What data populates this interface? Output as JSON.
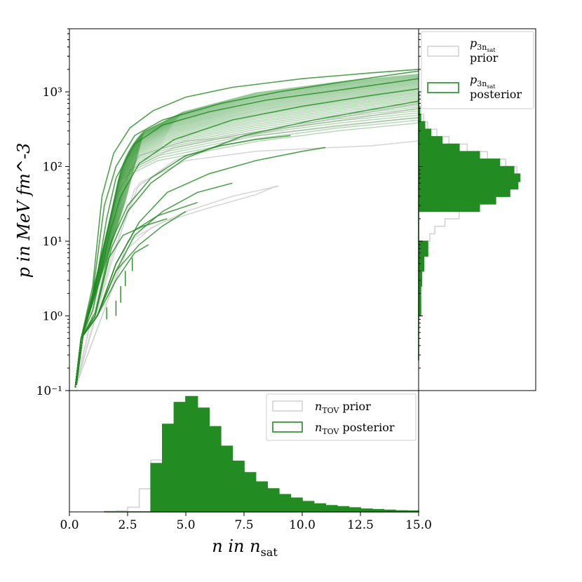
{
  "colors": {
    "prior": "#d3d3d3",
    "posterior": "#228b22",
    "legend_frame": "#cccccc"
  },
  "chart_data": [
    {
      "panel": "main",
      "type": "line",
      "xlabel": "n in n_sat",
      "ylabel": "p in MeV fm^-3",
      "xlim": [
        0,
        15
      ],
      "ylim": [
        0.1,
        7000
      ],
      "yscale": "log",
      "yticks": [
        0.1,
        1,
        10,
        100,
        1000
      ],
      "ytick_labels": [
        "10⁻¹",
        "10⁰",
        "10¹",
        "10²",
        "10³"
      ],
      "series": [
        {
          "name": "prior",
          "color": "#d3d3d3",
          "description": "sampled equation-of-state curves",
          "curves": [
            {
              "x": [
                0.3,
                1.2,
                2.0,
                3.0,
                5.0,
                8.0,
                11.0,
                14.0,
                15.0
              ],
              "y": [
                0.12,
                2.0,
                40,
                140,
                220,
                260,
                330,
                420,
                450
              ]
            },
            {
              "x": [
                0.3,
                1.5,
                2.5,
                3.5,
                5.0,
                7.0,
                9.0
              ],
              "y": [
                0.12,
                1.2,
                8,
                15,
                25,
                40,
                55
              ]
            },
            {
              "x": [
                0.3,
                1.5,
                2.5,
                4.0,
                6.0,
                8.0,
                8.9
              ],
              "y": [
                0.12,
                1.2,
                10,
                18,
                28,
                42,
                55
              ]
            },
            {
              "x": [
                0.3,
                1.8,
                3.0,
                5.0,
                8.0,
                10.5,
                13.0,
                15.0
              ],
              "y": [
                0.12,
                6,
                60,
                120,
                160,
                175,
                190,
                220
              ]
            },
            {
              "x": [
                0.3,
                1.6,
                2.6,
                4.5,
                7.0,
                10.0,
                13.0,
                15.0
              ],
              "y": [
                0.12,
                8,
                90,
                180,
                260,
                350,
                480,
                600
              ]
            },
            {
              "x": [
                0.3,
                1.7,
                2.8,
                4.5,
                7.5,
                11.0,
                15.0
              ],
              "y": [
                0.12,
                4,
                50,
                120,
                250,
                420,
                700
              ]
            }
          ]
        },
        {
          "name": "posterior",
          "color": "#228b22",
          "description": "sampled equation-of-state curves",
          "curves": [
            {
              "x": [
                0.25,
                0.5,
                1.0,
                1.6,
                2.0,
                2.8,
                4.0,
                6.0,
                8.5,
                12.0,
                15.0
              ],
              "y": [
                0.11,
                0.5,
                1.5,
                20,
                70,
                200,
                360,
                540,
                780,
                1100,
                1500
              ]
            },
            {
              "x": [
                0.25,
                0.5,
                1.0,
                1.5,
                2.0,
                2.8,
                4.0,
                6.5,
                9.0,
                12.0,
                15.0
              ],
              "y": [
                0.11,
                0.5,
                2.0,
                30,
                100,
                260,
                420,
                700,
                1000,
                1400,
                1900
              ]
            },
            {
              "x": [
                0.25,
                0.5,
                1.0,
                1.7,
                2.2,
                3.0,
                4.5,
                7.0,
                10.0,
                13.0,
                15.0
              ],
              "y": [
                0.11,
                0.5,
                1.2,
                12,
                40,
                110,
                230,
                420,
                640,
                900,
                1100
              ]
            },
            {
              "x": [
                0.25,
                0.5,
                1.1,
                1.8,
                2.5,
                3.5,
                5.0,
                7.5,
                10.5,
                13.5,
                15.0
              ],
              "y": [
                0.11,
                0.5,
                1.0,
                8,
                25,
                60,
                130,
                260,
                420,
                620,
                750
              ]
            },
            {
              "x": [
                0.25,
                0.5,
                1.2,
                2.0,
                2.8,
                4.0,
                5.5,
                7.0
              ],
              "y": [
                0.11,
                0.5,
                1.0,
                4,
                12,
                25,
                45,
                60
              ]
            },
            {
              "x": [
                0.25,
                0.5,
                1.1,
                1.8,
                2.5,
                3.5,
                5.0,
                6.5,
                8.0,
                9.5
              ],
              "y": [
                0.11,
                0.5,
                1.1,
                10,
                30,
                70,
                140,
                190,
                230,
                260
              ]
            },
            {
              "x": [
                0.25,
                0.5,
                1.2,
                2.0,
                2.8,
                3.8,
                5.5
              ],
              "y": [
                0.11,
                0.5,
                1.0,
                5,
                14,
                22,
                33
              ]
            },
            {
              "x": [
                0.25,
                0.5,
                1.2,
                2.0,
                3.0,
                4.0,
                5.0
              ],
              "y": [
                0.11,
                0.5,
                1.0,
                4,
                9,
                16,
                25
              ]
            },
            {
              "x": [
                0.25,
                0.5,
                1.2,
                2.0,
                2.8,
                3.4
              ],
              "y": [
                0.11,
                0.5,
                1.0,
                3,
                7,
                9
              ]
            },
            {
              "x": [
                0.25,
                0.5,
                1.1,
                1.7,
                2.3,
                3.2,
                4.2
              ],
              "y": [
                0.11,
                0.5,
                1.0,
                6,
                12,
                16,
                20
              ]
            },
            {
              "x": [
                0.25,
                0.5,
                1.0,
                1.4,
                1.9,
                2.6,
                3.6,
                5.0,
                7.0,
                10.0,
                13.0,
                15.0
              ],
              "y": [
                0.11,
                0.5,
                2.5,
                40,
                150,
                330,
                560,
                850,
                1150,
                1500,
                1800,
                2000
              ]
            },
            {
              "x": [
                0.25,
                0.5,
                1.2,
                2.0,
                3.0,
                4.2,
                6.0,
                8.0,
                10.0,
                11.0
              ],
              "y": [
                0.11,
                0.5,
                1.0,
                5,
                18,
                45,
                80,
                120,
                160,
                180
              ]
            }
          ]
        }
      ],
      "vertical_lines": {
        "color": "#228b22",
        "segments": [
          {
            "x": 1.6,
            "y": [
              0.9,
              1.3
            ]
          },
          {
            "x": 2.0,
            "y": [
              1.0,
              1.6
            ]
          },
          {
            "x": 2.2,
            "y": [
              1.5,
              2.5
            ]
          },
          {
            "x": 2.4,
            "y": [
              2.5,
              4.0
            ]
          },
          {
            "x": 2.7,
            "y": [
              4.0,
              6.0
            ]
          }
        ]
      }
    },
    {
      "panel": "right",
      "type": "histogram",
      "orientation": "horizontal",
      "ylim": [
        0.1,
        7000
      ],
      "yscale": "log",
      "bins_log10_p": [
        -0.6,
        -0.4,
        -0.2,
        0.0,
        0.2,
        0.4,
        0.6,
        0.8,
        1.0,
        1.1,
        1.2,
        1.3,
        1.4,
        1.5,
        1.6,
        1.7,
        1.8,
        1.9,
        2.0,
        2.1,
        2.2,
        2.3,
        2.4,
        2.5,
        2.6,
        2.7,
        2.8,
        2.9,
        3.0
      ],
      "series": [
        {
          "name": "prior",
          "color": "#d3d3d3",
          "values": [
            0,
            0,
            0,
            0.01,
            0.01,
            0.02,
            0.04,
            0.07,
            0.11,
            0.16,
            0.26,
            0.4,
            0.55,
            0.7,
            0.85,
            0.94,
            1.0,
            0.97,
            0.86,
            0.68,
            0.48,
            0.3,
            0.18,
            0.09,
            0.05,
            0.02,
            0.01,
            0.01,
            0
          ]
        },
        {
          "name": "posterior",
          "color": "#228b22",
          "values": [
            0,
            0,
            0,
            0.02,
            0.02,
            0.03,
            0.05,
            0.09,
            0.0,
            0.0,
            0.0,
            0.0,
            0.6,
            0.76,
            0.9,
            0.98,
            1.0,
            0.94,
            0.8,
            0.6,
            0.4,
            0.23,
            0.12,
            0.06,
            0.02,
            0.01,
            0,
            0,
            0
          ]
        }
      ],
      "legend": {
        "position": "top-right",
        "entries": [
          {
            "symbol": "p",
            "subscript": "3n",
            "subsub": "sat",
            "label": "prior"
          },
          {
            "symbol": "p",
            "subscript": "3n",
            "subsub": "sat",
            "label": "posterior"
          }
        ]
      }
    },
    {
      "panel": "bottom",
      "type": "histogram",
      "orientation": "vertical",
      "xlim": [
        0,
        15
      ],
      "xticks": [
        0.0,
        2.5,
        5.0,
        7.5,
        10.0,
        12.5,
        15.0
      ],
      "xtick_labels": [
        "0.0",
        "2.5",
        "5.0",
        "7.5",
        "10.0",
        "12.5",
        "15.0"
      ],
      "xlabel_main": "n in n",
      "xlabel_sub": "sat",
      "bins_n": [
        1.5,
        2.0,
        2.5,
        3.0,
        3.5,
        4.0,
        4.5,
        5.0,
        5.5,
        6.0,
        6.5,
        7.0,
        7.5,
        8.0,
        8.5,
        9.0,
        9.5,
        10.0,
        10.5,
        11.0,
        11.5,
        12.0,
        12.5,
        13.0,
        13.5,
        14.0,
        14.5,
        15.0
      ],
      "series": [
        {
          "name": "n_TOV prior",
          "color": "#d3d3d3",
          "values": [
            0.005,
            0.01,
            0.04,
            0.2,
            0.45,
            0.75,
            0.93,
            1.0,
            0.88,
            0.72,
            0.55,
            0.42,
            0.32,
            0.24,
            0.18,
            0.14,
            0.11,
            0.08,
            0.06,
            0.05,
            0.04,
            0.03,
            0.02,
            0.015,
            0.01,
            0.01,
            0.005,
            0
          ]
        },
        {
          "name": "n_TOV posterior",
          "color": "#228b22",
          "values": [
            0,
            0,
            0,
            0,
            0.42,
            0.76,
            0.95,
            1.0,
            0.9,
            0.74,
            0.57,
            0.44,
            0.34,
            0.26,
            0.2,
            0.15,
            0.12,
            0.09,
            0.07,
            0.055,
            0.045,
            0.035,
            0.025,
            0.02,
            0.015,
            0.01,
            0.008,
            0
          ]
        }
      ],
      "legend": {
        "position": "top-right",
        "entries": [
          {
            "symbol": "n",
            "subscript": "TOV",
            "label": "prior"
          },
          {
            "symbol": "n",
            "subscript": "TOV",
            "label": "posterior"
          }
        ]
      }
    }
  ]
}
